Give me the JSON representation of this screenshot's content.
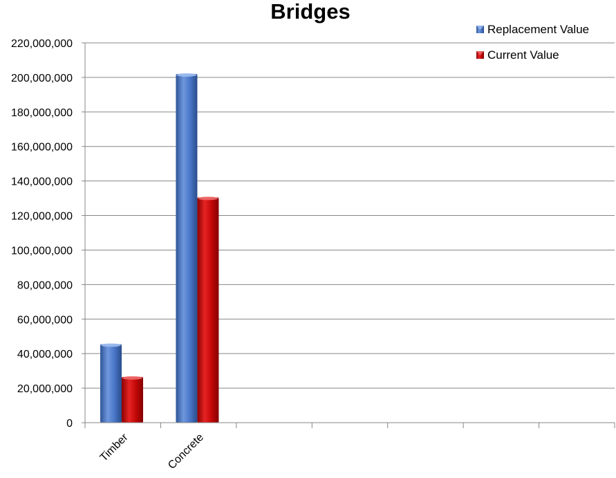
{
  "chart_data": {
    "type": "bar",
    "title": "Bridges",
    "xlabel": "",
    "ylabel": "",
    "categories": [
      "Timber",
      "Concrete",
      "",
      "",
      "",
      "",
      ""
    ],
    "series": [
      {
        "name": "Replacement Value",
        "color": "#4472C4",
        "values": [
          45500000,
          202000000,
          null,
          null,
          null,
          null,
          null
        ]
      },
      {
        "name": "Current Value",
        "color": "#C00000",
        "values": [
          26500000,
          130500000,
          null,
          null,
          null,
          null,
          null
        ]
      }
    ],
    "ylim": [
      0,
      220000000
    ],
    "yticks": [
      "0",
      "20,000,000",
      "40,000,000",
      "60,000,000",
      "80,000,000",
      "100,000,000",
      "120,000,000",
      "140,000,000",
      "160,000,000",
      "180,000,000",
      "200,000,000",
      "220,000,000"
    ],
    "grid": true,
    "legend_position": "top-right"
  }
}
